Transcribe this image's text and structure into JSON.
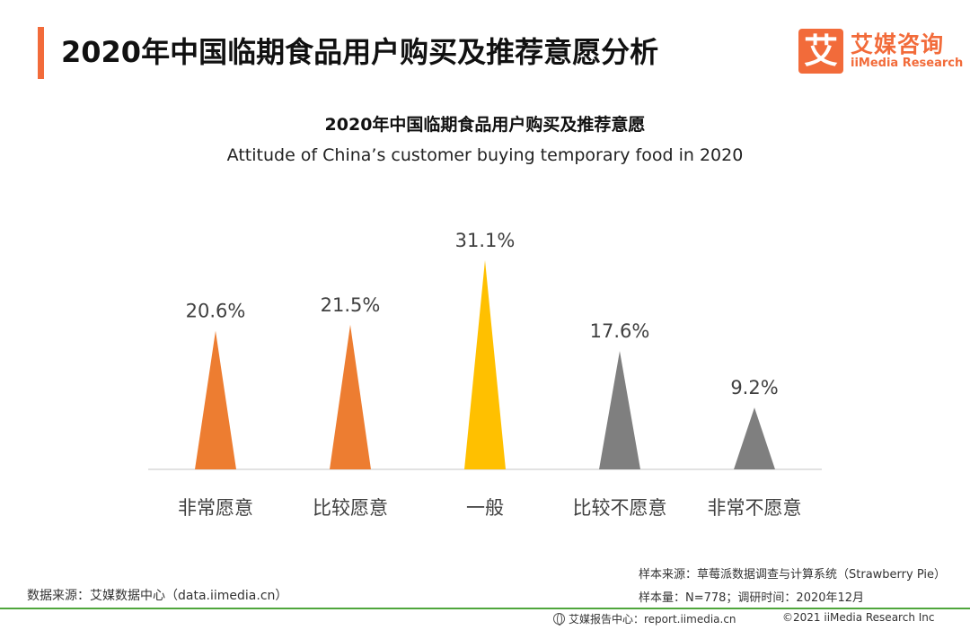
{
  "header": {
    "title": "2020年中国临期食品用户购买及推荐意愿分析",
    "logo": {
      "box_char": "艾",
      "cn": "艾媒咨询",
      "en": "iiMedia Research"
    }
  },
  "colors": {
    "accent": "#f26b3a",
    "orange": "#ed7d31",
    "yellow": "#ffc000",
    "gray": "#7f7f7f",
    "footer_line": "#4fa63c"
  },
  "chart_data": {
    "type": "bar",
    "title": "2020年中国临期食品用户购买及推荐意愿",
    "subtitle": "Attitude of China’s customer buying temporary food in 2020",
    "categories": [
      "非常愿意",
      "比较愿意",
      "一般",
      "比较不愿意",
      "非常不愿意"
    ],
    "values": [
      20.6,
      21.5,
      31.1,
      17.6,
      9.2
    ],
    "value_labels": [
      "20.6%",
      "21.5%",
      "31.1%",
      "17.6%",
      "9.2%"
    ],
    "colors": [
      "#ed7d31",
      "#ed7d31",
      "#ffc000",
      "#7f7f7f",
      "#7f7f7f"
    ],
    "unit": "%",
    "ylim": [
      0,
      31.1
    ],
    "grid": false,
    "legend": "none"
  },
  "footer": {
    "data_source": "数据来源：艾媒数据中心（data.iimedia.cn）",
    "sample_source": "样本来源：草莓派数据调查与计算系统（Strawberry Pie）",
    "sample_size": "样本量：N=778；调研时间：2020年12月",
    "report_center": "艾媒报告中心：report.iimedia.cn",
    "copyright": "©2021  iiMedia Research  Inc"
  }
}
